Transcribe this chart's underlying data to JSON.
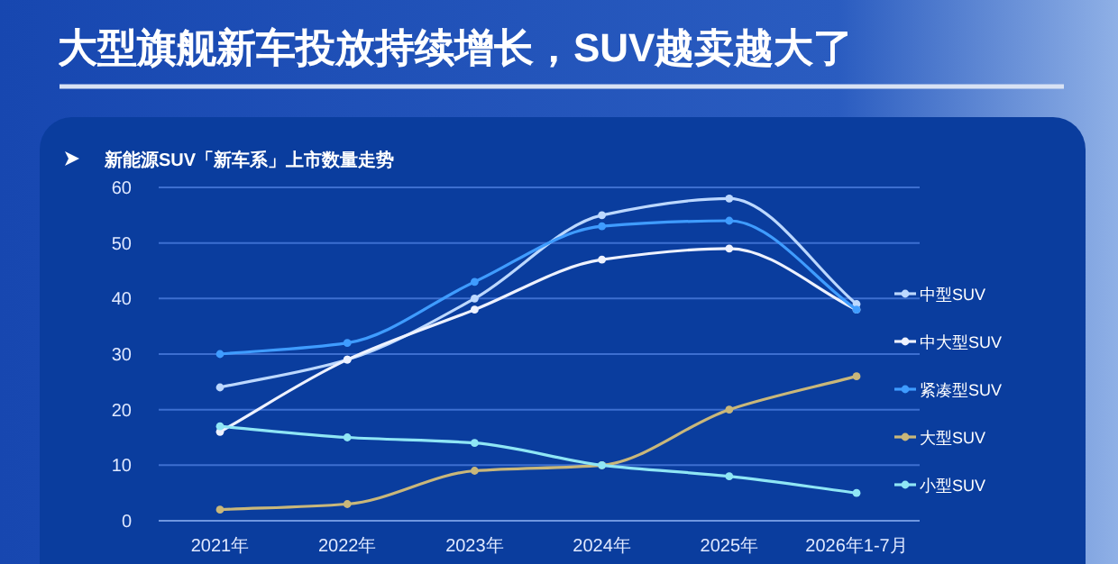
{
  "chart_data": {
    "type": "line",
    "title": "大型旗舰新车投放持续增长，SUV越卖越大了",
    "subtitle": "新能源SUV「新车系」上市数量走势",
    "categories": [
      "2021年",
      "2022年",
      "2023年",
      "2024年",
      "2025年",
      "2026年1-7月"
    ],
    "series": [
      {
        "name": "中型SUV",
        "color": "#bcd8ff",
        "values": [
          24,
          29,
          40,
          55,
          58,
          39
        ]
      },
      {
        "name": "中大型SUV",
        "color": "#eef2ff",
        "values": [
          16,
          29,
          38,
          47,
          49,
          38
        ]
      },
      {
        "name": "紧凑型SUV",
        "color": "#3f9cff",
        "values": [
          30,
          32,
          43,
          53,
          54,
          38
        ]
      },
      {
        "name": "大型SUV",
        "color": "#c9b77a",
        "values": [
          2,
          3,
          9,
          10,
          20,
          26
        ]
      },
      {
        "name": "小型SUV",
        "color": "#8fe6f5",
        "values": [
          17,
          15,
          14,
          10,
          8,
          5
        ]
      }
    ],
    "ylim": [
      0,
      60
    ],
    "yticks": [
      0,
      10,
      20,
      30,
      40,
      50,
      60
    ],
    "grid": "y",
    "legend": "right",
    "marker": "circle"
  }
}
